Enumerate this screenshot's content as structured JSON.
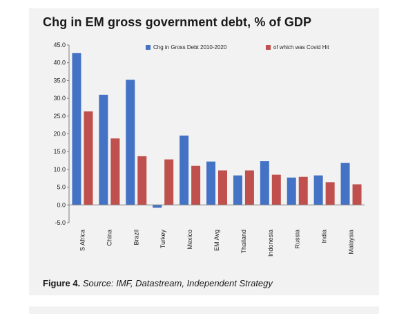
{
  "chart_data": {
    "type": "bar",
    "title": "Chg in EM gross government debt, % of GDP",
    "xlabel": "",
    "ylabel": "",
    "ylim": [
      -5,
      45
    ],
    "yticks": [
      "45.0",
      "40.0",
      "35.0",
      "30.0",
      "25.0",
      "20.0",
      "15.0",
      "10.0",
      "5.0",
      "0.0",
      "-5.0"
    ],
    "categories": [
      "S Africa",
      "China",
      "Brazil",
      "Turkey",
      "Mexico",
      "EM Avg",
      "Thailand",
      "Indonesia",
      "Russia",
      "India",
      "Malaysia"
    ],
    "series": [
      {
        "name": "Chg in Gross Debt 2010-2020",
        "color": "#4472c4",
        "values": [
          42.7,
          31.0,
          35.2,
          -0.8,
          19.5,
          12.2,
          8.3,
          12.3,
          7.7,
          8.3,
          11.8
        ]
      },
      {
        "name": "of which was Covid Hit",
        "color": "#c0504d",
        "values": [
          26.3,
          18.7,
          13.7,
          12.8,
          11.0,
          9.7,
          9.7,
          8.5,
          7.9,
          6.4,
          5.8
        ]
      }
    ],
    "legend": "top-right",
    "grid": false
  },
  "caption": {
    "figure_label": "Figure 4.",
    "source": "Source: IMF, Datastream, Independent Strategy"
  }
}
